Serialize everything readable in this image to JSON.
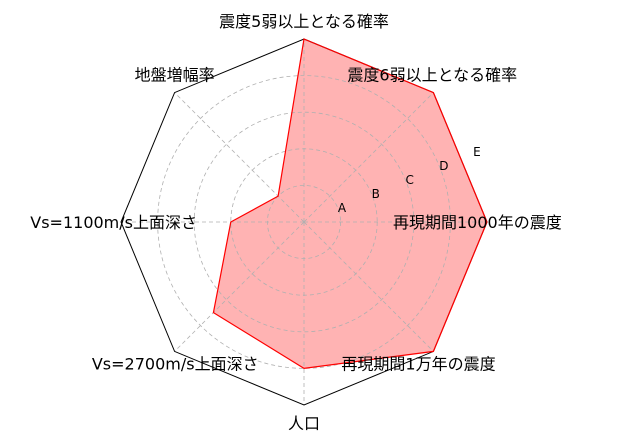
{
  "chart_data": {
    "type": "radar",
    "axes": [
      "震度5弱以上となる確率",
      "震度6弱以上となる確率",
      "再現期間1000年の震度",
      "再現期間1万年の震度",
      "人口",
      "Vs=2700m/s上面深さ",
      "Vs=1100m/s上面深さ",
      "地盤増幅率"
    ],
    "levels": [
      "A",
      "B",
      "C",
      "D",
      "E"
    ],
    "rlim": [
      0,
      5
    ],
    "grid": true,
    "series": [
      {
        "values": [
          5,
          5,
          5,
          5,
          4,
          3.5,
          2,
          1
        ],
        "color": "#ff0000",
        "fill": "#ffb3b3"
      }
    ]
  }
}
